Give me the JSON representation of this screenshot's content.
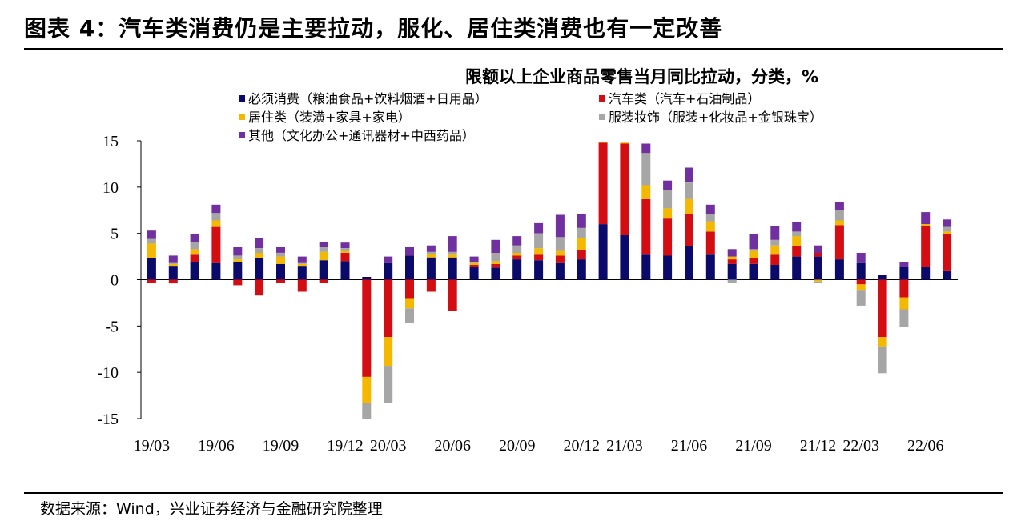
{
  "figure": {
    "title": "图表 4：汽车类消费仍是主要拉动，服化、居住类消费也有一定改善",
    "source": "数据来源：Wind，兴业证券经济与金融研究院整理"
  },
  "chart_data": {
    "type": "bar",
    "stacked": true,
    "title": "限额以上企业商品零售当月同比拉动，分类，%",
    "xlabel": "",
    "ylabel": "",
    "ylim": [
      -15,
      15
    ],
    "yticks": [
      15,
      10,
      5,
      0,
      -5,
      -10,
      -15
    ],
    "legend_position": "top-left",
    "grid": false,
    "categories": [
      "19/03",
      "19/04",
      "19/05",
      "19/06",
      "19/07",
      "19/08",
      "19/09",
      "19/10",
      "19/11",
      "19/12",
      "20/01-02",
      "20/03",
      "20/04",
      "20/05",
      "20/06",
      "20/07",
      "20/08",
      "20/09",
      "20/10",
      "20/11",
      "20/12",
      "21/01-02",
      "21/03",
      "21/04",
      "21/05",
      "21/06",
      "21/07",
      "21/08",
      "21/09",
      "21/10",
      "21/11",
      "21/12",
      "22/01-02",
      "22/03",
      "22/04",
      "22/05",
      "22/06",
      "22/07"
    ],
    "xtick_labels": [
      "19/03",
      "19/06",
      "19/09",
      "19/12",
      "20/03",
      "20/06",
      "20/09",
      "20/12",
      "21/03",
      "21/06",
      "21/09",
      "21/12",
      "22/03",
      "22/06"
    ],
    "xtick_indices": [
      0,
      3,
      6,
      9,
      11,
      14,
      17,
      20,
      22,
      25,
      28,
      31,
      33,
      36
    ],
    "series": [
      {
        "name": "必须消费（粮油食品+饮料烟酒+日用品）",
        "color": "#0a0a6b",
        "values": [
          2.3,
          1.5,
          1.9,
          1.8,
          1.9,
          2.3,
          1.7,
          1.5,
          2.1,
          2.0,
          0.3,
          1.8,
          2.6,
          2.4,
          2.4,
          1.4,
          1.3,
          2.2,
          2.1,
          1.8,
          2.2,
          6.0,
          4.8,
          2.7,
          2.6,
          3.6,
          2.7,
          1.7,
          1.7,
          1.6,
          2.5,
          2.5,
          2.2,
          1.8,
          0.5,
          1.4,
          1.4,
          1.0
        ]
      },
      {
        "name": "汽车类（汽车+石油制品）",
        "color": "#d40d12",
        "values": [
          -0.3,
          -0.4,
          0.8,
          3.9,
          -0.6,
          -1.7,
          -0.3,
          -1.3,
          -0.3,
          0.9,
          -10.5,
          -6.2,
          -2.0,
          -1.3,
          -3.4,
          0.2,
          0.4,
          0.4,
          0.6,
          0.8,
          1.0,
          8.8,
          9.9,
          6.0,
          4.0,
          3.5,
          2.5,
          0.5,
          0.6,
          1.1,
          1.1,
          0.4,
          3.7,
          -0.5,
          -6.2,
          -1.9,
          4.4,
          3.9
        ]
      },
      {
        "name": "居住类（装潢+家具+家电）",
        "color": "#f5b800",
        "values": [
          1.6,
          0.2,
          0.6,
          0.7,
          0.3,
          0.6,
          0.8,
          0.2,
          0.9,
          0.2,
          -2.8,
          -3.1,
          -1.1,
          0.4,
          0.3,
          0.2,
          0.3,
          0.3,
          0.7,
          0.5,
          1.3,
          0.1,
          0.1,
          1.5,
          1.1,
          1.6,
          1.1,
          0.3,
          0.8,
          1.0,
          1.1,
          -0.2,
          0.5,
          -0.6,
          -1.0,
          -1.3,
          0.2,
          0.3
        ]
      },
      {
        "name": "服装妆饰（服装+化妆品+金银珠宝）",
        "color": "#a6a6a6",
        "values": [
          0.5,
          0.1,
          0.8,
          0.8,
          0.4,
          0.5,
          0.4,
          0.1,
          0.5,
          0.3,
          -1.7,
          -4.0,
          -1.6,
          0.2,
          0.3,
          0.1,
          0.9,
          0.8,
          1.6,
          1.5,
          1.1,
          0.0,
          0.0,
          3.5,
          2.0,
          1.8,
          0.8,
          -0.3,
          0.2,
          0.6,
          0.5,
          -0.1,
          1.1,
          -1.7,
          -2.9,
          -1.9,
          0.0,
          0.5
        ]
      },
      {
        "name": "其他（文化办公+通讯器材+中西药品）",
        "color": "#7030a0",
        "values": [
          0.9,
          0.8,
          0.8,
          0.9,
          0.9,
          1.1,
          0.6,
          0.7,
          0.6,
          0.6,
          0.0,
          0.7,
          0.9,
          0.7,
          1.7,
          0.6,
          1.4,
          1.0,
          1.1,
          2.4,
          1.5,
          0.0,
          0.0,
          1.0,
          1.0,
          1.6,
          1.0,
          0.8,
          1.6,
          1.5,
          1.0,
          0.8,
          0.9,
          1.1,
          0.0,
          0.5,
          1.3,
          0.8
        ]
      }
    ]
  }
}
